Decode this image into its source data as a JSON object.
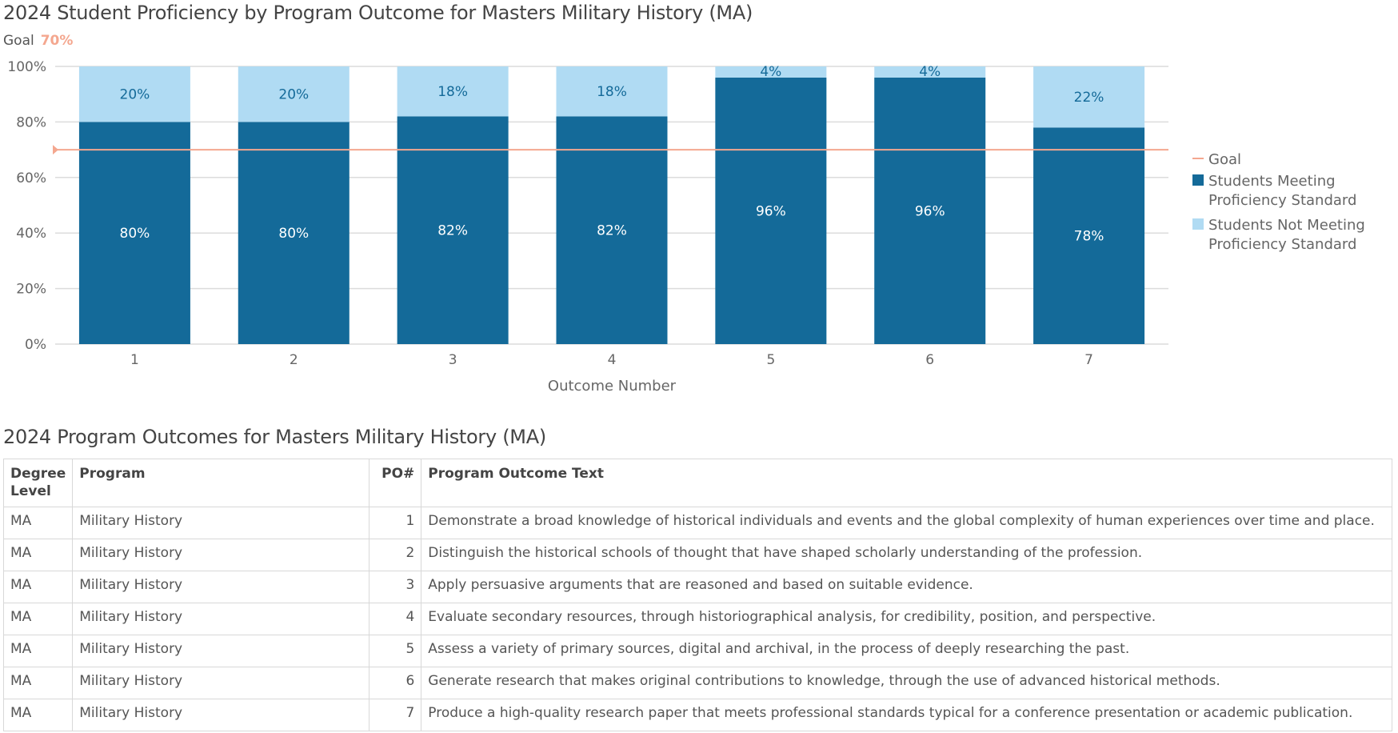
{
  "chart_data": {
    "type": "bar",
    "stacked": true,
    "title": "2024 Student Proficiency by Program Outcome for Masters Military History (MA)",
    "goal_label": "Goal",
    "goal_value_label": "70%",
    "goal": 70,
    "xlabel": "Outcome Number",
    "ylabel": "",
    "ylim": [
      0,
      100
    ],
    "yticks": [
      "0%",
      "20%",
      "40%",
      "60%",
      "80%",
      "100%"
    ],
    "categories": [
      "1",
      "2",
      "3",
      "4",
      "5",
      "6",
      "7"
    ],
    "series": [
      {
        "name": "Students Meeting Proficiency Standard",
        "values": [
          80,
          80,
          82,
          82,
          96,
          96,
          78
        ],
        "labels": [
          "80%",
          "80%",
          "82%",
          "82%",
          "96%",
          "96%",
          "78%"
        ],
        "color": "#146a99"
      },
      {
        "name": "Students Not Meeting Proficiency Standard",
        "values": [
          20,
          20,
          18,
          18,
          4,
          4,
          22
        ],
        "labels": [
          "20%",
          "20%",
          "18%",
          "18%",
          "4%",
          "4%",
          "22%"
        ],
        "color": "#b0dbf3"
      }
    ],
    "legend": {
      "placement": "right",
      "items": [
        "Goal",
        "Students Meeting Proficiency Standard",
        "Students Not Meeting Proficiency Standard"
      ]
    },
    "goal_color": "#f4a78f",
    "grid": true
  },
  "table": {
    "title": "2024 Program Outcomes for Masters Military History (MA)",
    "headers": [
      "Degree Level",
      "Program",
      "PO#",
      "Program Outcome Text"
    ],
    "rows": [
      [
        "MA",
        "Military History",
        "1",
        "Demonstrate a broad knowledge of historical individuals and events and the global complexity of human experiences over time and place."
      ],
      [
        "MA",
        "Military History",
        "2",
        "Distinguish the historical schools of thought that have shaped scholarly understanding of the profession."
      ],
      [
        "MA",
        "Military History",
        "3",
        "Apply persuasive arguments that are reasoned and based on suitable evidence."
      ],
      [
        "MA",
        "Military History",
        "4",
        "Evaluate secondary resources, through historiographical analysis, for credibility, position, and perspective."
      ],
      [
        "MA",
        "Military History",
        "5",
        "Assess a variety of primary sources, digital and archival, in the process of deeply researching the past."
      ],
      [
        "MA",
        "Military History",
        "6",
        "Generate research that makes original contributions to knowledge, through the use of advanced historical methods."
      ],
      [
        "MA",
        "Military History",
        "7",
        "Produce a high-quality research paper that meets professional standards typical for a conference presentation or academic publication."
      ]
    ]
  }
}
